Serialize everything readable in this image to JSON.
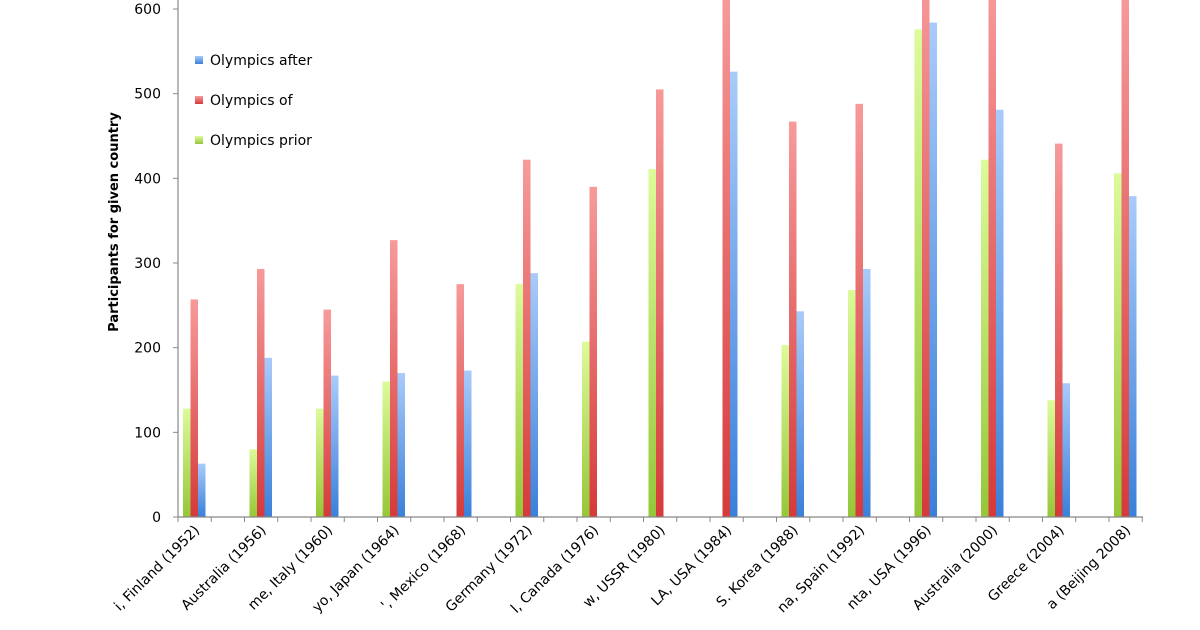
{
  "chart_data": {
    "type": "bar",
    "title": "",
    "xlabel": "",
    "ylabel": "Participants for given country",
    "ylim": [
      0,
      600
    ],
    "yticks": [
      0,
      100,
      200,
      300,
      400,
      500,
      600
    ],
    "grid": false,
    "legend_position": "top-left",
    "categories": [
      "i, Finland (1952)",
      "Australia (1956)",
      "me, Italy (1960)",
      "yo, Japan (1964)",
      "', Mexico (1968)",
      "Germany (1972)",
      "l, Canada (1976)",
      "w, USSR (1980)",
      "LA, USA (1984)",
      "S. Korea (1988)",
      "na, Spain (1992)",
      "nta, USA (1996)",
      "Australia (2000)",
      "Greece (2004)",
      "a (Beijing 2008)"
    ],
    "series": [
      {
        "name": "Olympics prior",
        "color": "#9bcc3c",
        "values": [
          128,
          80,
          128,
          160,
          0,
          275,
          207,
          411,
          0,
          203,
          268,
          576,
          422,
          138,
          406
        ]
      },
      {
        "name": "Olympics of",
        "color": "#e04848",
        "values": [
          257,
          293,
          245,
          327,
          275,
          422,
          390,
          505,
          620,
          467,
          488,
          640,
          630,
          441,
          620
        ]
      },
      {
        "name": "Olympics after",
        "color": "#4a8ee0",
        "values": [
          63,
          188,
          167,
          170,
          173,
          288,
          0,
          0,
          526,
          243,
          293,
          584,
          481,
          158,
          379
        ]
      }
    ],
    "legend_order": [
      "Olympics after",
      "Olympics of",
      "Olympics prior"
    ]
  }
}
